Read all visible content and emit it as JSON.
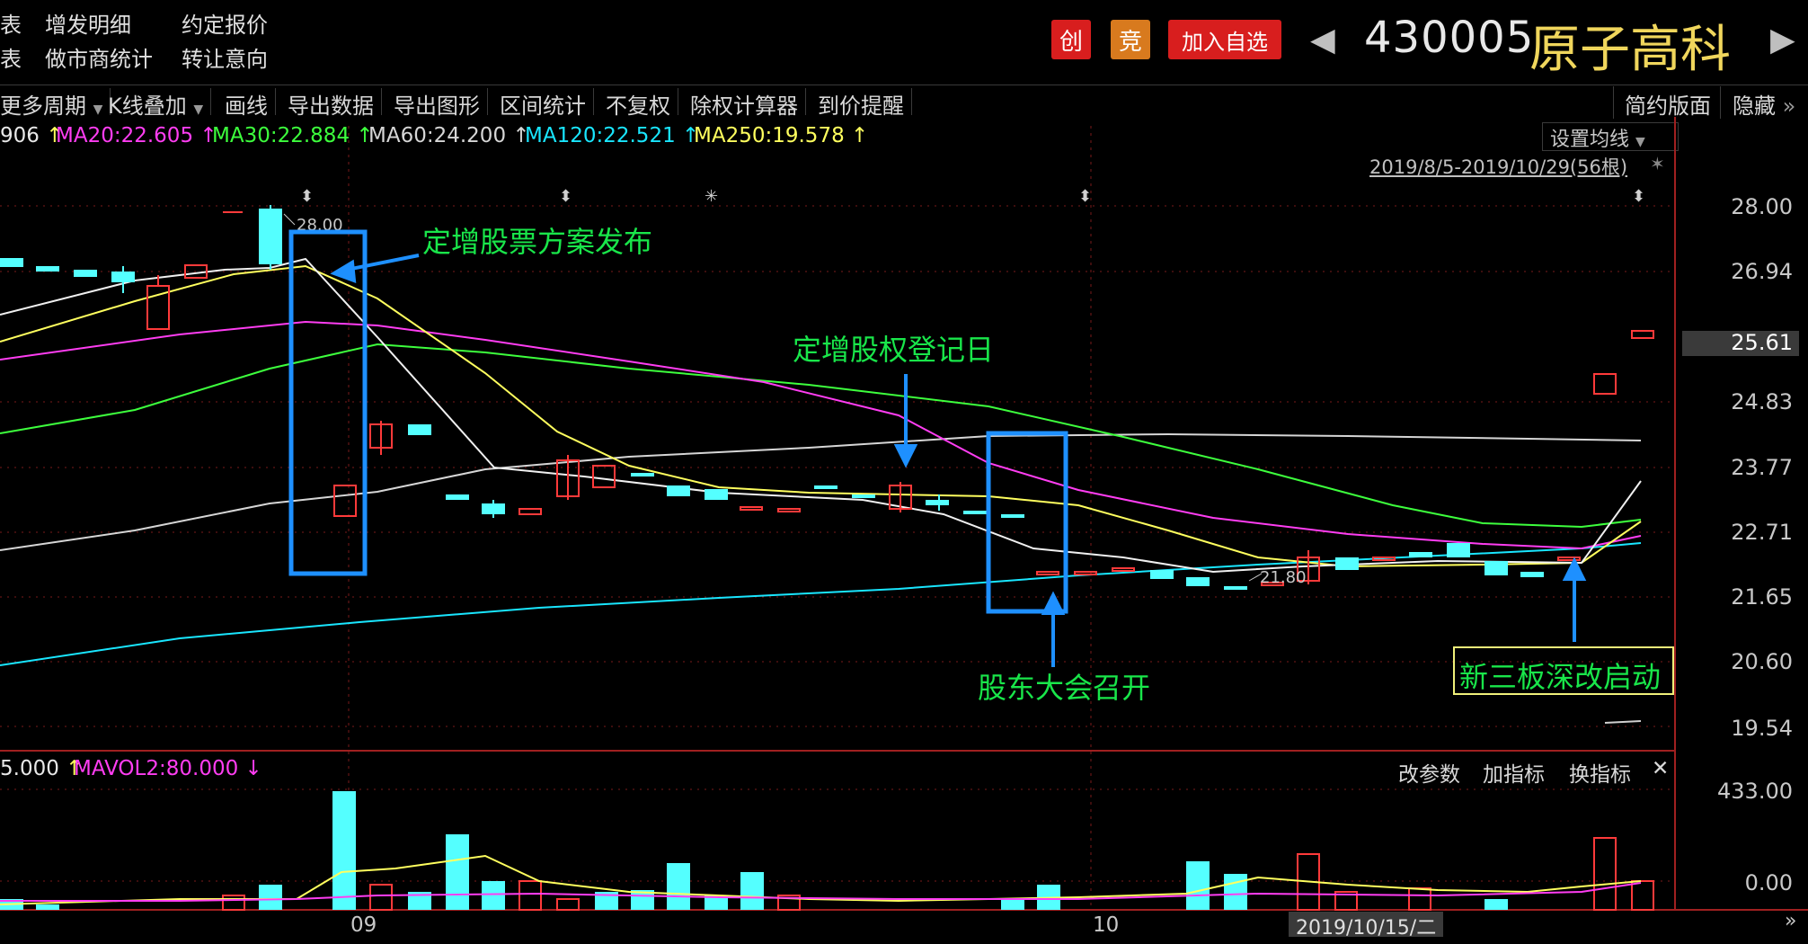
{
  "header": {
    "links": [
      "表",
      "表",
      "增发明细",
      "做市商统计",
      "约定报价",
      "转让意向"
    ],
    "badges": [
      "创",
      "竞",
      "加入自选"
    ],
    "prev_arrow": "◀",
    "next_arrow": "▶",
    "stock_code": "430005",
    "stock_name": "原子高科"
  },
  "toolbar": {
    "items": [
      "更多周期",
      "K线叠加",
      "画线",
      "导出数据",
      "导出图形",
      "区间统计",
      "不复权",
      "除权计算器",
      "到价提醒"
    ],
    "right_items": [
      "简约版面",
      "隐藏"
    ],
    "more_glyph": "»"
  },
  "ma_legend": [
    {
      "text": "906",
      "color": "#e8e8e8"
    },
    {
      "text": "MA20:22.605",
      "color": "#ff3df2"
    },
    {
      "text": "MA30:22.884",
      "color": "#3dff3d"
    },
    {
      "text": "MA60:24.200",
      "color": "#d6d6d6"
    },
    {
      "text": "MA120:22.521",
      "color": "#19e6ff"
    },
    {
      "text": "MA250:19.578",
      "color": "#ffff5e"
    }
  ],
  "ma_arrows": [
    "↑",
    "↑",
    "↑",
    "↑",
    "↑",
    "↑"
  ],
  "settings": {
    "ma_button": "设置均线",
    "range": "2019/8/5-2019/10/29(56根)"
  },
  "price_panel": {
    "y_ticks": [
      "28.00",
      "26.94",
      "25.61",
      "24.83",
      "23.77",
      "22.71",
      "21.65",
      "20.60",
      "19.54"
    ],
    "high_label": "28.00",
    "low_label": "21.80",
    "current_price": "25.61"
  },
  "annotations": [
    "定增股票方案发布",
    "定增股权登记日",
    "股东大会召开",
    "新三板深改启动"
  ],
  "volume_panel": {
    "legend_left": "5.000",
    "legend_arrow": "↑",
    "mavol2": "MAVOL2:80.000",
    "mavol2_arrow": "↓",
    "buttons": [
      "改参数",
      "加指标",
      "换指标"
    ],
    "close": "✕",
    "y_ticks": [
      "433.00",
      "0.00"
    ]
  },
  "x_axis": {
    "labels": [
      "09",
      "10"
    ],
    "cursor_date": "2019/10/15/二"
  },
  "chart_data": {
    "type": "candlestick",
    "x": [
      "2019-08-05",
      "2019-10-29"
    ],
    "price_range": [
      19.54,
      28.0
    ],
    "series": [
      {
        "name": "MA20",
        "value": 22.605,
        "color": "#ff3df2"
      },
      {
        "name": "MA30",
        "value": 22.884,
        "color": "#3dff3d"
      },
      {
        "name": "MA60",
        "value": 24.2,
        "color": "#d6d6d6"
      },
      {
        "name": "MA120",
        "value": 22.521,
        "color": "#19e6ff"
      },
      {
        "name": "MA250",
        "value": 19.578,
        "color": "#ffff5e"
      }
    ],
    "volume_range": [
      0,
      433.0
    ]
  },
  "colors": {
    "up": "#ff3a3a",
    "down": "#54ffff",
    "grid": "#7a1a1a",
    "annotation": "#19e64a",
    "box": "#1e90ff"
  }
}
